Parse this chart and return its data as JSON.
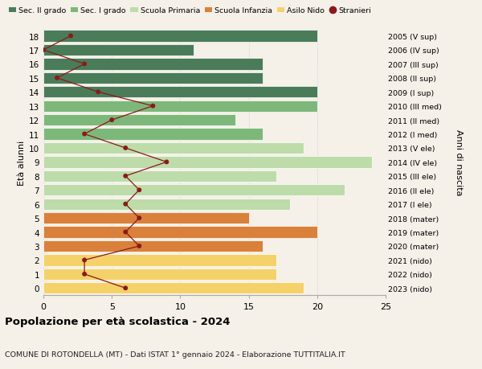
{
  "ages": [
    18,
    17,
    16,
    15,
    14,
    13,
    12,
    11,
    10,
    9,
    8,
    7,
    6,
    5,
    4,
    3,
    2,
    1,
    0
  ],
  "years": [
    "2005 (V sup)",
    "2006 (IV sup)",
    "2007 (III sup)",
    "2008 (II sup)",
    "2009 (I sup)",
    "2010 (III med)",
    "2011 (II med)",
    "2012 (I med)",
    "2013 (V ele)",
    "2014 (IV ele)",
    "2015 (III ele)",
    "2016 (II ele)",
    "2017 (I ele)",
    "2018 (mater)",
    "2019 (mater)",
    "2020 (mater)",
    "2021 (nido)",
    "2022 (nido)",
    "2023 (nido)"
  ],
  "bar_values": [
    20,
    11,
    16,
    16,
    20,
    20,
    14,
    16,
    19,
    24,
    17,
    22,
    18,
    15,
    20,
    16,
    17,
    17,
    19
  ],
  "bar_colors": [
    "#4a7c59",
    "#4a7c59",
    "#4a7c59",
    "#4a7c59",
    "#4a7c59",
    "#7db87a",
    "#7db87a",
    "#7db87a",
    "#bddcaa",
    "#bddcaa",
    "#bddcaa",
    "#bddcaa",
    "#bddcaa",
    "#d9813a",
    "#d9813a",
    "#d9813a",
    "#f5d16a",
    "#f5d16a",
    "#f5d16a"
  ],
  "stranieri": [
    2,
    0,
    3,
    1,
    4,
    8,
    5,
    3,
    6,
    9,
    6,
    7,
    6,
    7,
    6,
    7,
    3,
    3,
    6
  ],
  "title": "Popolazione per età scolastica - 2024",
  "subtitle": "COMUNE DI ROTONDELLA (MT) - Dati ISTAT 1° gennaio 2024 - Elaborazione TUTTITALIA.IT",
  "ylabel": "Età alunni",
  "ylabel2": "Anni di nascita",
  "legend_labels": [
    "Sec. II grado",
    "Sec. I grado",
    "Scuola Primaria",
    "Scuola Infanzia",
    "Asilo Nido",
    "Stranieri"
  ],
  "legend_colors": [
    "#4a7c59",
    "#7db87a",
    "#bddcaa",
    "#d9813a",
    "#f5d16a",
    "#8b1a1a"
  ],
  "xlim": [
    0,
    25
  ],
  "dot_color": "#8b1a1a",
  "line_color": "#8b1a1a",
  "bg_color": "#f5f0e8",
  "grid_color": "#cccccc"
}
